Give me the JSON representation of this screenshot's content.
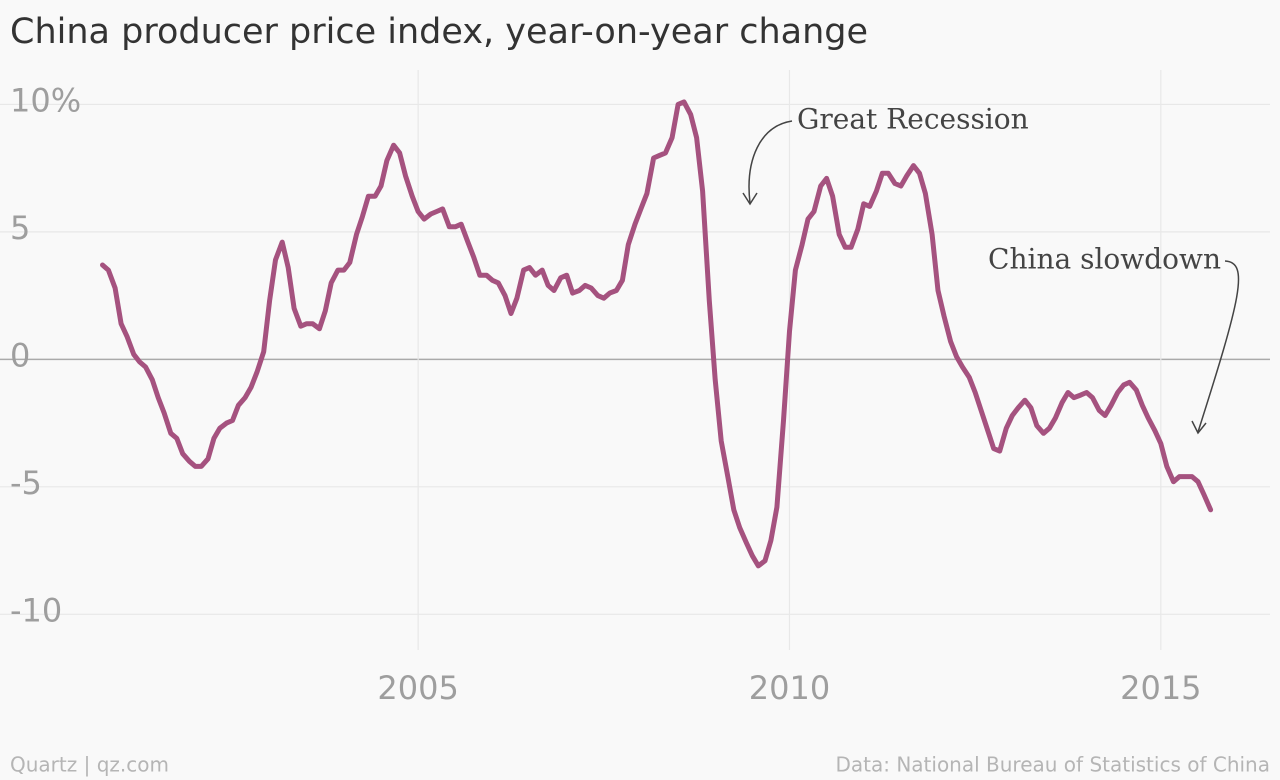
{
  "chart_data": {
    "type": "line",
    "title": "China producer price index, year-on-year change",
    "source": "Data: National Bureau of Statistics of China",
    "credit": "Quartz | qz.com",
    "annotations": [
      "Great Recession",
      "China slowdown"
    ],
    "color": "#a5527f",
    "x": [
      2000.75,
      2000.83,
      2000.92,
      2001,
      2001.08,
      2001.17,
      2001.25,
      2001.33,
      2001.42,
      2001.5,
      2001.58,
      2001.67,
      2001.75,
      2001.83,
      2001.92,
      2002,
      2002.08,
      2002.17,
      2002.25,
      2002.33,
      2002.42,
      2002.5,
      2002.58,
      2002.67,
      2002.75,
      2002.83,
      2002.92,
      2003,
      2003.08,
      2003.17,
      2003.25,
      2003.33,
      2003.42,
      2003.5,
      2003.58,
      2003.67,
      2003.75,
      2003.83,
      2003.92,
      2004,
      2004.08,
      2004.17,
      2004.25,
      2004.33,
      2004.42,
      2004.5,
      2004.58,
      2004.67,
      2004.75,
      2004.83,
      2004.92,
      2005,
      2005.08,
      2005.17,
      2005.25,
      2005.33,
      2005.42,
      2005.5,
      2005.58,
      2005.67,
      2005.75,
      2005.83,
      2005.92,
      2006,
      2006.08,
      2006.17,
      2006.25,
      2006.33,
      2006.42,
      2006.5,
      2006.58,
      2006.67,
      2006.75,
      2006.83,
      2006.92,
      2007,
      2007.08,
      2007.17,
      2007.25,
      2007.33,
      2007.42,
      2007.5,
      2007.58,
      2007.67,
      2007.75,
      2007.83,
      2007.92,
      2008,
      2008.08,
      2008.17,
      2008.25,
      2008.33,
      2008.42,
      2008.5,
      2008.58,
      2008.67,
      2008.75,
      2008.83,
      2008.92,
      2009,
      2009.08,
      2009.17,
      2009.25,
      2009.33,
      2009.42,
      2009.5,
      2009.58,
      2009.67,
      2009.75,
      2009.83,
      2009.92,
      2010,
      2010.08,
      2010.17,
      2010.25,
      2010.33,
      2010.42,
      2010.5,
      2010.58,
      2010.67,
      2010.75,
      2010.83,
      2010.92,
      2011,
      2011.08,
      2011.17,
      2011.25,
      2011.33,
      2011.42,
      2011.5,
      2011.58,
      2011.67,
      2011.75,
      2011.83,
      2011.92,
      2012,
      2012.08,
      2012.17,
      2012.25,
      2012.33,
      2012.42,
      2012.5,
      2012.58,
      2012.67,
      2012.75,
      2012.83,
      2012.92,
      2013,
      2013.08,
      2013.17,
      2013.25,
      2013.33,
      2013.42,
      2013.5,
      2013.58,
      2013.67,
      2013.75,
      2013.83,
      2013.92,
      2014,
      2014.08,
      2014.17,
      2014.25,
      2014.33,
      2014.42,
      2014.5,
      2014.58,
      2014.67,
      2014.75,
      2014.83,
      2014.92,
      2015,
      2015.08,
      2015.17,
      2015.25,
      2015.33,
      2015.42,
      2015.5,
      2015.58,
      2015.67
    ],
    "values": [
      3.7,
      3.5,
      2.8,
      1.4,
      0.9,
      0.2,
      -0.1,
      -0.3,
      -0.8,
      -1.5,
      -2.1,
      -2.9,
      -3.1,
      -3.7,
      -4.0,
      -4.2,
      -4.2,
      -3.9,
      -3.1,
      -2.7,
      -2.5,
      -2.4,
      -1.8,
      -1.5,
      -1.1,
      -0.5,
      0.3,
      2.3,
      3.9,
      4.6,
      3.6,
      2.0,
      1.3,
      1.4,
      1.4,
      1.2,
      1.9,
      3.0,
      3.5,
      3.5,
      3.8,
      4.9,
      5.6,
      6.4,
      6.4,
      6.8,
      7.8,
      8.4,
      8.1,
      7.2,
      6.4,
      5.8,
      5.5,
      5.7,
      5.8,
      5.9,
      5.2,
      5.2,
      5.3,
      4.6,
      4.0,
      3.3,
      3.3,
      3.1,
      3.0,
      2.5,
      1.8,
      2.4,
      3.5,
      3.6,
      3.3,
      3.5,
      2.9,
      2.7,
      3.2,
      3.3,
      2.6,
      2.7,
      2.9,
      2.8,
      2.5,
      2.4,
      2.6,
      2.7,
      3.1,
      4.5,
      5.3,
      5.9,
      6.5,
      7.9,
      8.0,
      8.1,
      8.7,
      10.0,
      10.1,
      9.6,
      8.7,
      6.6,
      2.3,
      -0.8,
      -3.2,
      -4.6,
      -5.9,
      -6.6,
      -7.2,
      -7.7,
      -8.1,
      -7.9,
      -7.1,
      -5.8,
      -2.4,
      1.1,
      3.5,
      4.5,
      5.5,
      5.8,
      6.8,
      7.1,
      6.4,
      4.9,
      4.4,
      4.4,
      5.1,
      6.1,
      6.0,
      6.6,
      7.3,
      7.3,
      6.9,
      6.8,
      7.2,
      7.6,
      7.3,
      6.5,
      4.9,
      2.7,
      1.7,
      0.7,
      0.1,
      -0.3,
      -0.7,
      -1.3,
      -2.0,
      -2.8,
      -3.5,
      -3.6,
      -2.7,
      -2.2,
      -1.9,
      -1.6,
      -1.9,
      -2.6,
      -2.9,
      -2.7,
      -2.3,
      -1.7,
      -1.3,
      -1.5,
      -1.4,
      -1.3,
      -1.5,
      -2.0,
      -2.2,
      -1.8,
      -1.3,
      -1.0,
      -0.9,
      -1.2,
      -1.8,
      -2.3,
      -2.8,
      -3.3,
      -4.2,
      -4.8,
      -4.6,
      -4.6,
      -4.6,
      -4.8,
      -5.3,
      -5.9
    ],
    "xlim": [
      1999.37,
      2016.47
    ],
    "xticks": [
      2005,
      2010,
      2015
    ],
    "ylim": [
      -11.4,
      11.35
    ],
    "yticks": [
      -10,
      -5,
      0,
      5,
      {
        "value": 10,
        "label": "10%"
      }
    ],
    "grid": true
  }
}
